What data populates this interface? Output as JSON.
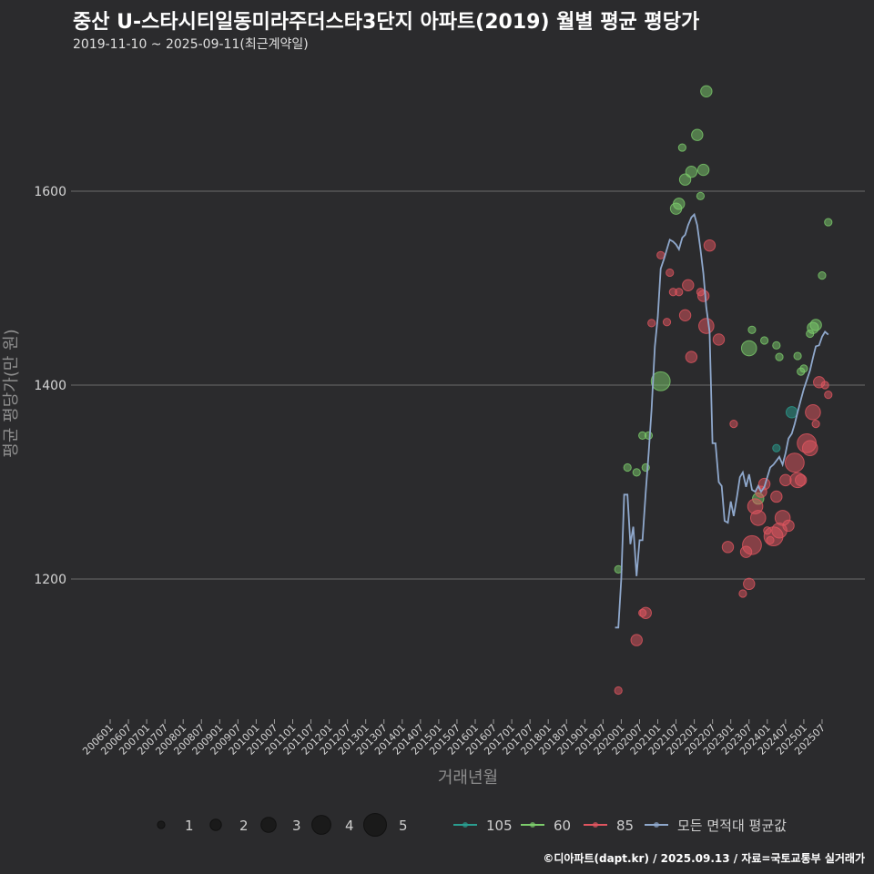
{
  "title": "중산 U-스타시티일동미라주더스타3단지 아파트(2019) 월별 평균 평당가",
  "subtitle": "2019-11-10 ~ 2025-09-11(최근계약일)",
  "credit": "©디아파트(dapt.kr) / 2025.09.13 / 자료=국토교통부 실거래가",
  "colors": {
    "background": "#2b2b2d",
    "grid": "#6b6b6b",
    "s105": "#2a9d8f",
    "s60": "#7ccc6b",
    "s85": "#e0555f",
    "avg": "#8fa8cc"
  },
  "chart_data": {
    "type": "scatter",
    "title": "중산 U-스타시티일동미라주더스타3단지 아파트(2019) 월별 평균 평당가",
    "xlabel": "거래년월",
    "ylabel": "평균 평당가(만 원)",
    "ylim": [
      1060,
      1730
    ],
    "xlim": [
      2006.0,
      2025.75
    ],
    "yticks": [
      1200,
      1400,
      1600
    ],
    "xtick_labels": [
      "200601",
      "200607",
      "200701",
      "200707",
      "200801",
      "200807",
      "200901",
      "200907",
      "201001",
      "201007",
      "201101",
      "201107",
      "201201",
      "201207",
      "201301",
      "201307",
      "201401",
      "201407",
      "201501",
      "201507",
      "201601",
      "201607",
      "201701",
      "201707",
      "201801",
      "201807",
      "201901",
      "201907",
      "202001",
      "202007",
      "202101",
      "202107",
      "202201",
      "202207",
      "202301",
      "202307",
      "202401",
      "202407",
      "202501",
      "202507"
    ],
    "size_legend": {
      "title": "",
      "values": [
        1,
        2,
        3,
        4,
        5
      ]
    },
    "series_legend": [
      {
        "key": "s105",
        "label": "105"
      },
      {
        "key": "s60",
        "label": "60"
      },
      {
        "key": "s85",
        "label": "85"
      },
      {
        "key": "avg",
        "label": "모든 면적대 평균값"
      }
    ],
    "series": [
      {
        "name": "105",
        "key": "s105",
        "points": [
          {
            "x": 2024.67,
            "y": 1372,
            "size": 2
          },
          {
            "x": 2024.25,
            "y": 1335,
            "size": 1
          }
        ]
      },
      {
        "name": "60",
        "key": "s60",
        "points": [
          {
            "x": 2019.92,
            "y": 1210,
            "size": 1
          },
          {
            "x": 2020.17,
            "y": 1315,
            "size": 1
          },
          {
            "x": 2020.42,
            "y": 1310,
            "size": 1
          },
          {
            "x": 2020.58,
            "y": 1348,
            "size": 1
          },
          {
            "x": 2020.67,
            "y": 1315,
            "size": 1
          },
          {
            "x": 2020.75,
            "y": 1348,
            "size": 1
          },
          {
            "x": 2021.08,
            "y": 1404,
            "size": 4
          },
          {
            "x": 2021.5,
            "y": 1582,
            "size": 2
          },
          {
            "x": 2021.58,
            "y": 1587,
            "size": 2
          },
          {
            "x": 2021.67,
            "y": 1645,
            "size": 1
          },
          {
            "x": 2021.75,
            "y": 1612,
            "size": 2
          },
          {
            "x": 2021.92,
            "y": 1620,
            "size": 2
          },
          {
            "x": 2022.08,
            "y": 1658,
            "size": 2
          },
          {
            "x": 2022.17,
            "y": 1595,
            "size": 1
          },
          {
            "x": 2022.25,
            "y": 1622,
            "size": 2
          },
          {
            "x": 2022.33,
            "y": 1703,
            "size": 2
          },
          {
            "x": 2023.5,
            "y": 1438,
            "size": 3
          },
          {
            "x": 2023.58,
            "y": 1457,
            "size": 1
          },
          {
            "x": 2023.75,
            "y": 1283,
            "size": 2
          },
          {
            "x": 2023.92,
            "y": 1446,
            "size": 1
          },
          {
            "x": 2024.25,
            "y": 1441,
            "size": 1
          },
          {
            "x": 2024.33,
            "y": 1429,
            "size": 1
          },
          {
            "x": 2024.83,
            "y": 1430,
            "size": 1
          },
          {
            "x": 2024.92,
            "y": 1414,
            "size": 1
          },
          {
            "x": 2025.0,
            "y": 1417,
            "size": 1
          },
          {
            "x": 2025.17,
            "y": 1453,
            "size": 1
          },
          {
            "x": 2025.25,
            "y": 1459,
            "size": 2
          },
          {
            "x": 2025.33,
            "y": 1462,
            "size": 2
          },
          {
            "x": 2025.5,
            "y": 1513,
            "size": 1
          },
          {
            "x": 2025.67,
            "y": 1568,
            "size": 1
          }
        ]
      },
      {
        "name": "85",
        "key": "s85",
        "points": [
          {
            "x": 2019.92,
            "y": 1085,
            "size": 1
          },
          {
            "x": 2020.42,
            "y": 1137,
            "size": 2
          },
          {
            "x": 2020.58,
            "y": 1165,
            "size": 1
          },
          {
            "x": 2020.67,
            "y": 1165,
            "size": 2
          },
          {
            "x": 2020.83,
            "y": 1464,
            "size": 1
          },
          {
            "x": 2021.08,
            "y": 1534,
            "size": 1
          },
          {
            "x": 2021.25,
            "y": 1465,
            "size": 1
          },
          {
            "x": 2021.33,
            "y": 1516,
            "size": 1
          },
          {
            "x": 2021.42,
            "y": 1496,
            "size": 1
          },
          {
            "x": 2021.58,
            "y": 1496,
            "size": 1
          },
          {
            "x": 2021.75,
            "y": 1472,
            "size": 2
          },
          {
            "x": 2021.83,
            "y": 1503,
            "size": 2
          },
          {
            "x": 2021.92,
            "y": 1429,
            "size": 2
          },
          {
            "x": 2022.17,
            "y": 1496,
            "size": 1
          },
          {
            "x": 2022.25,
            "y": 1492,
            "size": 2
          },
          {
            "x": 2022.33,
            "y": 1461,
            "size": 3
          },
          {
            "x": 2022.42,
            "y": 1544,
            "size": 2
          },
          {
            "x": 2022.67,
            "y": 1447,
            "size": 2
          },
          {
            "x": 2022.92,
            "y": 1233,
            "size": 2
          },
          {
            "x": 2023.08,
            "y": 1360,
            "size": 1
          },
          {
            "x": 2023.33,
            "y": 1185,
            "size": 1
          },
          {
            "x": 2023.42,
            "y": 1228,
            "size": 2
          },
          {
            "x": 2023.5,
            "y": 1195,
            "size": 2
          },
          {
            "x": 2023.58,
            "y": 1235,
            "size": 4
          },
          {
            "x": 2023.67,
            "y": 1275,
            "size": 3
          },
          {
            "x": 2023.75,
            "y": 1263,
            "size": 3
          },
          {
            "x": 2023.83,
            "y": 1290,
            "size": 2
          },
          {
            "x": 2023.92,
            "y": 1298,
            "size": 2
          },
          {
            "x": 2024.0,
            "y": 1250,
            "size": 1
          },
          {
            "x": 2024.08,
            "y": 1240,
            "size": 1
          },
          {
            "x": 2024.17,
            "y": 1244,
            "size": 4
          },
          {
            "x": 2024.25,
            "y": 1285,
            "size": 2
          },
          {
            "x": 2024.33,
            "y": 1250,
            "size": 3
          },
          {
            "x": 2024.42,
            "y": 1263,
            "size": 3
          },
          {
            "x": 2024.5,
            "y": 1302,
            "size": 2
          },
          {
            "x": 2024.58,
            "y": 1255,
            "size": 2
          },
          {
            "x": 2024.75,
            "y": 1320,
            "size": 4
          },
          {
            "x": 2024.83,
            "y": 1302,
            "size": 3
          },
          {
            "x": 2024.92,
            "y": 1302,
            "size": 2
          },
          {
            "x": 2025.08,
            "y": 1340,
            "size": 4
          },
          {
            "x": 2025.17,
            "y": 1335,
            "size": 3
          },
          {
            "x": 2025.25,
            "y": 1372,
            "size": 3
          },
          {
            "x": 2025.33,
            "y": 1360,
            "size": 1
          },
          {
            "x": 2025.42,
            "y": 1403,
            "size": 2
          },
          {
            "x": 2025.58,
            "y": 1400,
            "size": 1
          },
          {
            "x": 2025.67,
            "y": 1390,
            "size": 1
          }
        ]
      }
    ],
    "average_line": {
      "name": "모든 면적대 평균값",
      "key": "avg",
      "points": [
        {
          "x": 2019.83,
          "y": 1150
        },
        {
          "x": 2019.92,
          "y": 1150
        },
        {
          "x": 2020.0,
          "y": 1200
        },
        {
          "x": 2020.08,
          "y": 1287
        },
        {
          "x": 2020.17,
          "y": 1287
        },
        {
          "x": 2020.25,
          "y": 1236
        },
        {
          "x": 2020.33,
          "y": 1254
        },
        {
          "x": 2020.42,
          "y": 1203
        },
        {
          "x": 2020.5,
          "y": 1240
        },
        {
          "x": 2020.58,
          "y": 1240
        },
        {
          "x": 2020.67,
          "y": 1290
        },
        {
          "x": 2020.75,
          "y": 1330
        },
        {
          "x": 2020.83,
          "y": 1375
        },
        {
          "x": 2020.92,
          "y": 1440
        },
        {
          "x": 2021.0,
          "y": 1470
        },
        {
          "x": 2021.08,
          "y": 1520
        },
        {
          "x": 2021.17,
          "y": 1530
        },
        {
          "x": 2021.25,
          "y": 1540
        },
        {
          "x": 2021.33,
          "y": 1550
        },
        {
          "x": 2021.42,
          "y": 1548
        },
        {
          "x": 2021.5,
          "y": 1545
        },
        {
          "x": 2021.58,
          "y": 1540
        },
        {
          "x": 2021.67,
          "y": 1552
        },
        {
          "x": 2021.75,
          "y": 1555
        },
        {
          "x": 2021.83,
          "y": 1565
        },
        {
          "x": 2021.92,
          "y": 1573
        },
        {
          "x": 2022.0,
          "y": 1576
        },
        {
          "x": 2022.08,
          "y": 1565
        },
        {
          "x": 2022.17,
          "y": 1540
        },
        {
          "x": 2022.25,
          "y": 1515
        },
        {
          "x": 2022.33,
          "y": 1480
        },
        {
          "x": 2022.42,
          "y": 1455
        },
        {
          "x": 2022.5,
          "y": 1340
        },
        {
          "x": 2022.58,
          "y": 1340
        },
        {
          "x": 2022.67,
          "y": 1300
        },
        {
          "x": 2022.75,
          "y": 1296
        },
        {
          "x": 2022.83,
          "y": 1260
        },
        {
          "x": 2022.92,
          "y": 1258
        },
        {
          "x": 2023.0,
          "y": 1280
        },
        {
          "x": 2023.08,
          "y": 1265
        },
        {
          "x": 2023.17,
          "y": 1285
        },
        {
          "x": 2023.25,
          "y": 1305
        },
        {
          "x": 2023.33,
          "y": 1310
        },
        {
          "x": 2023.42,
          "y": 1295
        },
        {
          "x": 2023.5,
          "y": 1308
        },
        {
          "x": 2023.58,
          "y": 1292
        },
        {
          "x": 2023.67,
          "y": 1290
        },
        {
          "x": 2023.75,
          "y": 1296
        },
        {
          "x": 2023.83,
          "y": 1290
        },
        {
          "x": 2023.92,
          "y": 1295
        },
        {
          "x": 2024.0,
          "y": 1305
        },
        {
          "x": 2024.08,
          "y": 1315
        },
        {
          "x": 2024.17,
          "y": 1318
        },
        {
          "x": 2024.25,
          "y": 1322
        },
        {
          "x": 2024.33,
          "y": 1326
        },
        {
          "x": 2024.42,
          "y": 1318
        },
        {
          "x": 2024.5,
          "y": 1330
        },
        {
          "x": 2024.58,
          "y": 1345
        },
        {
          "x": 2024.67,
          "y": 1350
        },
        {
          "x": 2024.75,
          "y": 1360
        },
        {
          "x": 2024.83,
          "y": 1372
        },
        {
          "x": 2024.92,
          "y": 1385
        },
        {
          "x": 2025.0,
          "y": 1396
        },
        {
          "x": 2025.08,
          "y": 1405
        },
        {
          "x": 2025.17,
          "y": 1415
        },
        {
          "x": 2025.25,
          "y": 1428
        },
        {
          "x": 2025.33,
          "y": 1440
        },
        {
          "x": 2025.42,
          "y": 1441
        },
        {
          "x": 2025.5,
          "y": 1450
        },
        {
          "x": 2025.58,
          "y": 1455
        },
        {
          "x": 2025.67,
          "y": 1452
        }
      ]
    }
  }
}
